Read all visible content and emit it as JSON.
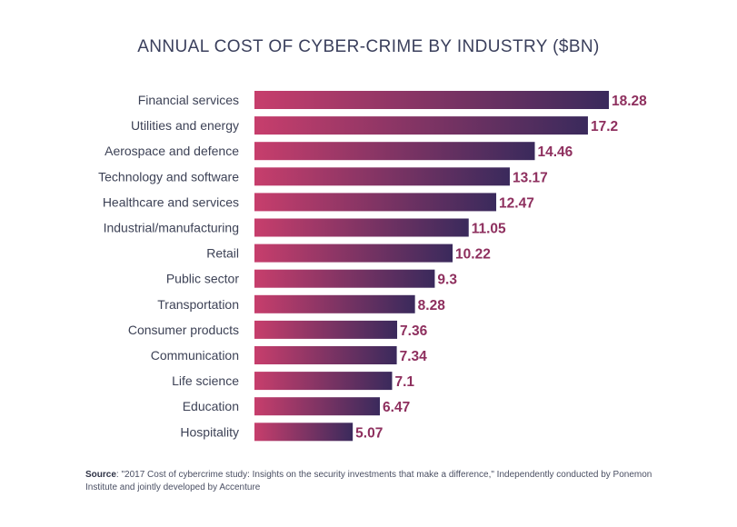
{
  "title": "ANNUAL COST OF CYBER-CRIME BY INDUSTRY ($BN)",
  "source_label": "Source",
  "source_text": ": \"2017 Cost of cybercrime study: Insights on the security investments that make a difference,\" Independently conducted by Ponemon Institute and jointly developed by Accenture",
  "colors": {
    "bar_start": "#c73e6c",
    "bar_end": "#3a2a5c",
    "value_text": "#8e2f5e"
  },
  "chart_data": {
    "type": "bar",
    "orientation": "horizontal",
    "title": "ANNUAL COST OF CYBER-CRIME BY INDUSTRY ($BN)",
    "categories": [
      "Financial services",
      "Utilities and energy",
      "Aerospace and defence",
      "Technology and software",
      "Healthcare and services",
      "Industrial/manufacturing",
      "Retail",
      "Public sector",
      "Transportation",
      "Consumer products",
      "Communication",
      "Life science",
      "Education",
      "Hospitality"
    ],
    "values": [
      18.28,
      17.2,
      14.46,
      13.17,
      12.47,
      11.05,
      10.22,
      9.3,
      8.28,
      7.36,
      7.34,
      7.1,
      6.47,
      5.07
    ],
    "value_labels": [
      "18.28",
      "17.2",
      "14.46",
      "13.17",
      "12.47",
      "11.05",
      "10.22",
      "9.3",
      "8.28",
      "7.36",
      "7.34",
      "7.1",
      "6.47",
      "5.07"
    ],
    "xlim": [
      0,
      18.28
    ],
    "grid": false,
    "legend": "none"
  }
}
